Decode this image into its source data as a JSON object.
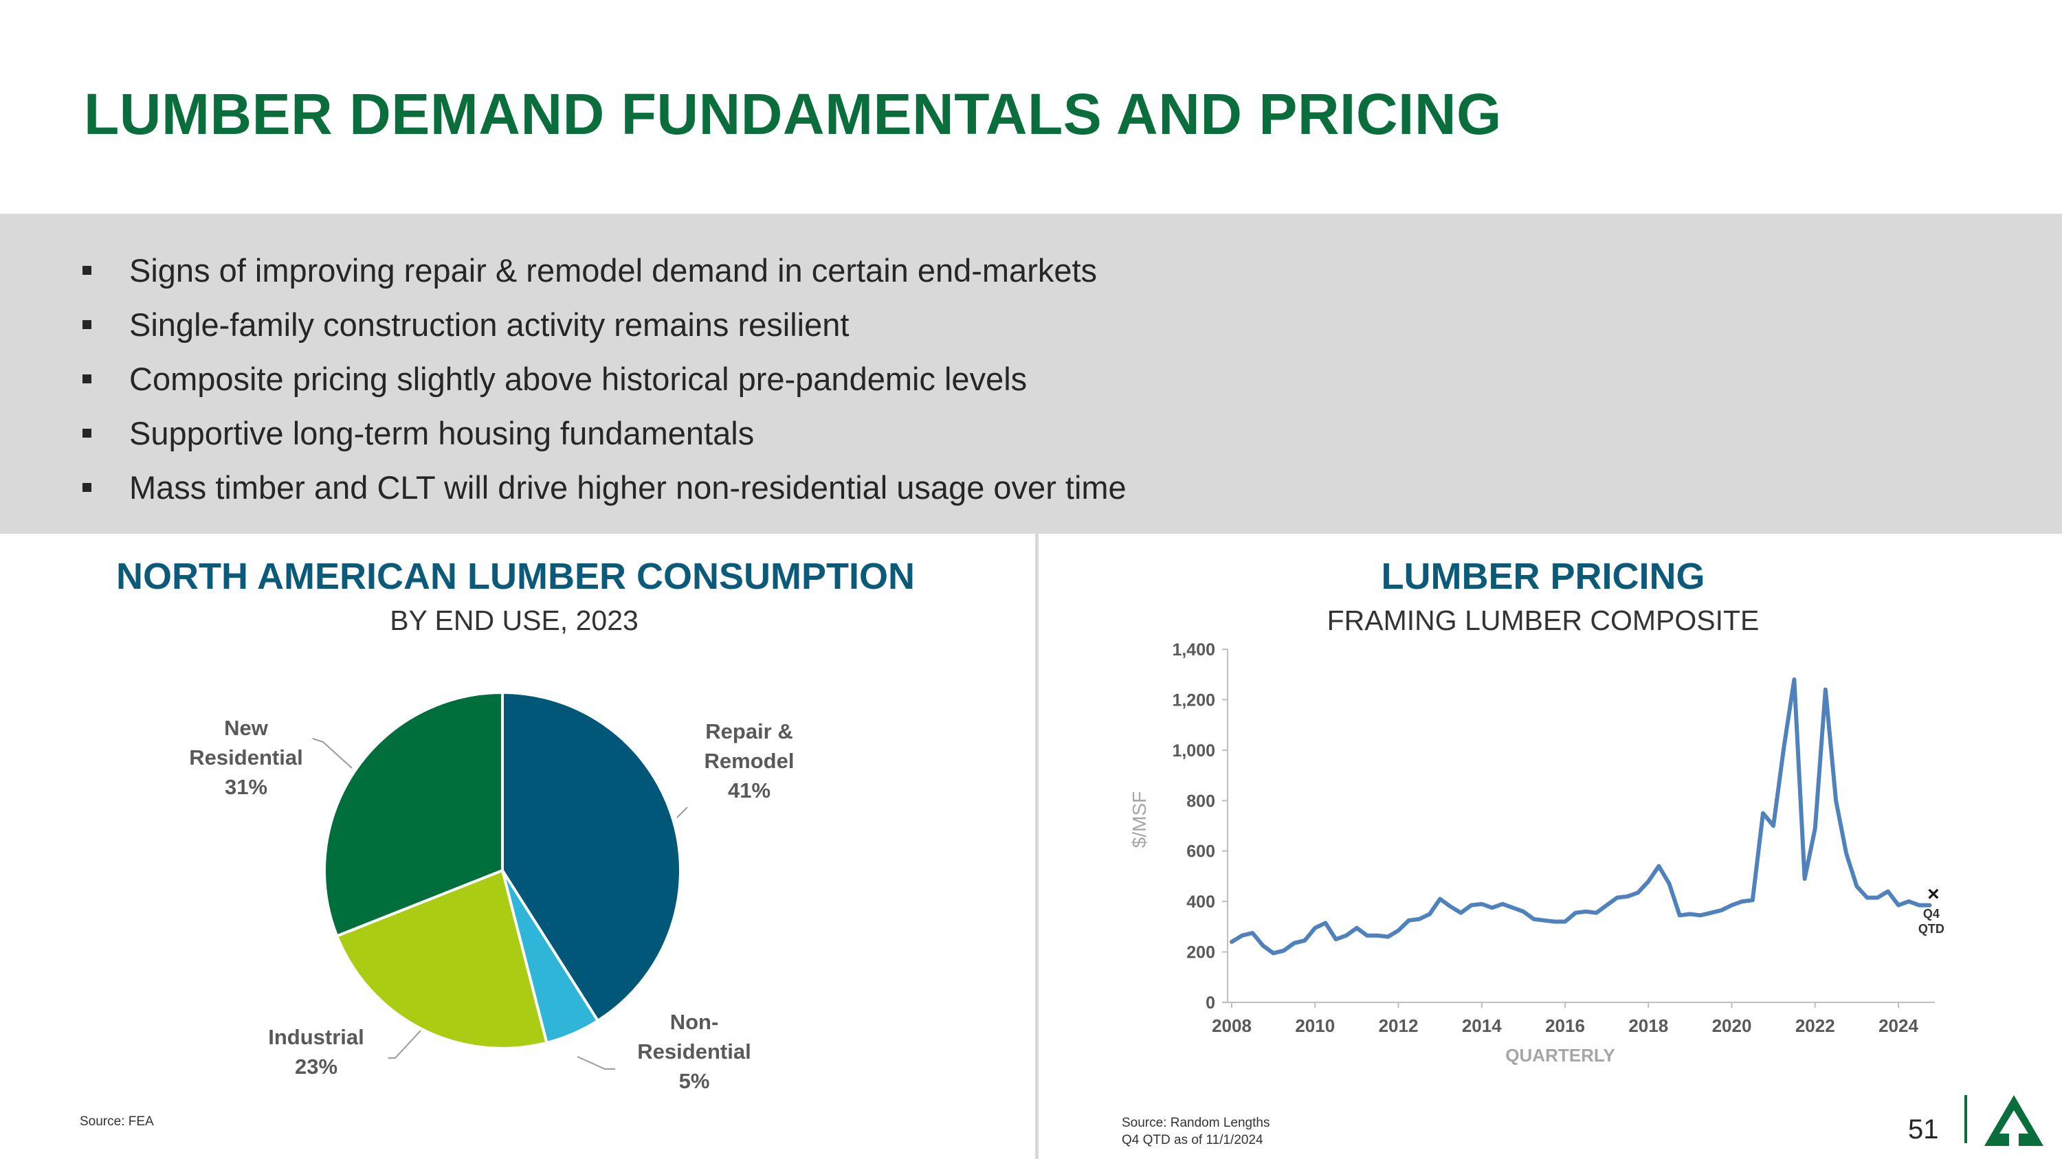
{
  "title": "LUMBER DEMAND FUNDAMENTALS AND PRICING",
  "bullets": [
    "Signs of improving repair & remodel demand in certain end-markets",
    "Single-family construction activity remains resilient",
    "Composite pricing slightly above historical pre-pandemic levels",
    "Supportive long-term housing fundamentals",
    "Mass timber and CLT will drive higher non-residential usage over time"
  ],
  "left_panel": {
    "title": "NORTH AMERICAN LUMBER CONSUMPTION",
    "subtitle": "BY END USE, 2023",
    "source": "Source: FEA"
  },
  "right_panel": {
    "title": "LUMBER PRICING",
    "subtitle": "FRAMING LUMBER COMPOSITE",
    "source_line1": "Source: Random Lengths",
    "source_line2": "Q4 QTD as of 11/1/2024"
  },
  "page_number": "51",
  "colors": {
    "title_green": "#0a6e3c",
    "panel_title_blue": "#0c5a7a",
    "band_gray": "#d9d9d9",
    "line_blue": "#4f81bd",
    "logo_green": "#0a6e3c"
  },
  "logo_icon": "tree-triangle-logo",
  "chart_data": [
    {
      "type": "pie",
      "title": "NORTH AMERICAN LUMBER CONSUMPTION",
      "subtitle": "BY END USE, 2023",
      "slices": [
        {
          "label_lines": [
            "Repair &",
            "Remodel",
            "41%"
          ],
          "name": "Repair & Remodel",
          "value": 41,
          "color": "#005778"
        },
        {
          "label_lines": [
            "Non-",
            "Residential",
            "5%"
          ],
          "name": "Non-Residential",
          "value": 5,
          "color": "#2fb5d8"
        },
        {
          "label_lines": [
            "Industrial",
            "23%"
          ],
          "name": "Industrial",
          "value": 23,
          "color": "#aacd14"
        },
        {
          "label_lines": [
            "New",
            "Residential",
            "31%"
          ],
          "name": "New Residential",
          "value": 31,
          "color": "#006f3c"
        }
      ]
    },
    {
      "type": "line",
      "title": "LUMBER PRICING",
      "subtitle": "FRAMING LUMBER COMPOSITE",
      "xlabel": "QUARTERLY",
      "ylabel": "$/MSF",
      "xlim": [
        2008,
        2025
      ],
      "ylim": [
        0,
        1400
      ],
      "x_ticks": [
        "2008",
        "2010",
        "2012",
        "2014",
        "2016",
        "2018",
        "2020",
        "2022",
        "2024"
      ],
      "y_ticks": [
        "0",
        "200",
        "400",
        "600",
        "800",
        "1,000",
        "1,200",
        "1,400"
      ],
      "grid": false,
      "series": [
        {
          "color": "#4f81bd",
          "x": [
            2008.0,
            2008.25,
            2008.5,
            2008.75,
            2009.0,
            2009.25,
            2009.5,
            2009.75,
            2010.0,
            2010.25,
            2010.5,
            2010.75,
            2011.0,
            2011.25,
            2011.5,
            2011.75,
            2012.0,
            2012.25,
            2012.5,
            2012.75,
            2013.0,
            2013.25,
            2013.5,
            2013.75,
            2014.0,
            2014.25,
            2014.5,
            2014.75,
            2015.0,
            2015.25,
            2015.5,
            2015.75,
            2016.0,
            2016.25,
            2016.5,
            2016.75,
            2017.0,
            2017.25,
            2017.5,
            2017.75,
            2018.0,
            2018.25,
            2018.5,
            2018.75,
            2019.0,
            2019.25,
            2019.5,
            2019.75,
            2020.0,
            2020.25,
            2020.5,
            2020.75,
            2021.0,
            2021.25,
            2021.5,
            2021.75,
            2022.0,
            2022.25,
            2022.5,
            2022.75,
            2023.0,
            2023.25,
            2023.5,
            2023.75,
            2024.0,
            2024.25,
            2024.5,
            2024.75
          ],
          "y": [
            240,
            265,
            275,
            225,
            195,
            205,
            235,
            245,
            295,
            315,
            250,
            265,
            295,
            265,
            265,
            260,
            285,
            325,
            330,
            350,
            410,
            380,
            355,
            385,
            390,
            375,
            390,
            375,
            360,
            330,
            325,
            320,
            320,
            355,
            360,
            355,
            385,
            415,
            420,
            435,
            480,
            540,
            470,
            345,
            350,
            345,
            355,
            365,
            385,
            400,
            405,
            750,
            700,
            1010,
            1280,
            490,
            690,
            1240,
            800,
            590,
            460,
            415,
            415,
            440,
            385,
            400,
            385,
            385
          ]
        }
      ],
      "annotations": [
        {
          "text_lines": [
            "Q4",
            "QTD"
          ],
          "marker": "×",
          "x": 2024.84,
          "y": 395
        }
      ]
    }
  ]
}
